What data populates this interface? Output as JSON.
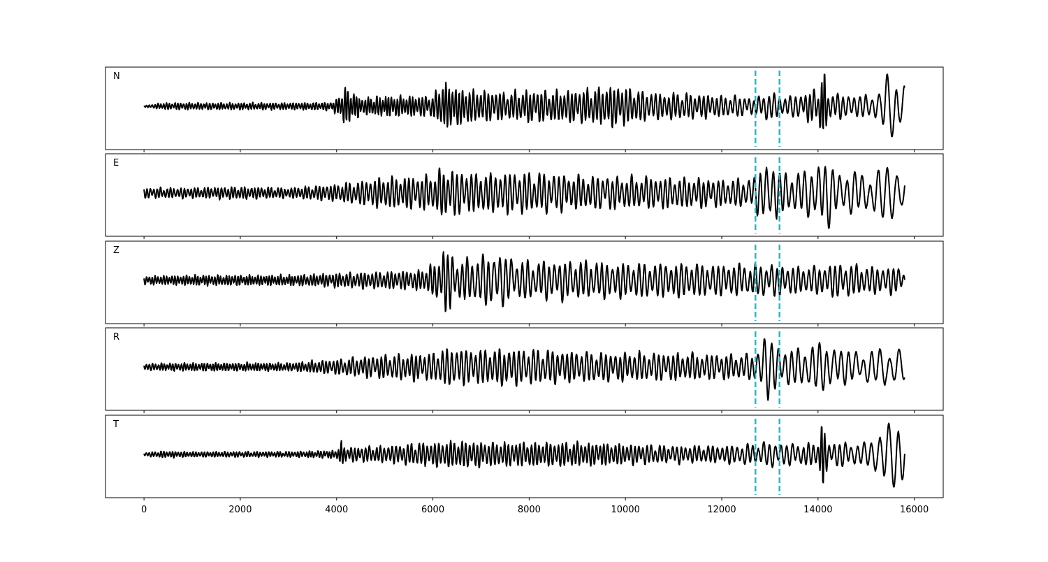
{
  "chart_data": {
    "type": "line",
    "xlim": [
      -800,
      16600
    ],
    "xticks": [
      0,
      2000,
      4000,
      6000,
      8000,
      10000,
      12000,
      14000,
      16000
    ],
    "xtick_labels": [
      "0",
      "2000",
      "4000",
      "6000",
      "8000",
      "10000",
      "12000",
      "14000",
      "16000"
    ],
    "sample_range": [
      0,
      15800
    ],
    "vertical_markers": [
      12700,
      13200
    ],
    "marker_color": "#17becf",
    "trace_color": "#000000",
    "panels": [
      {
        "label": "N",
        "x": [
          0,
          400,
          1000,
          2000,
          3000,
          3900,
          4100,
          4150,
          4500,
          5000,
          6000,
          6200,
          6500,
          7000,
          7600,
          8000,
          9000,
          9800,
          10500,
          11500,
          12000,
          12500,
          12700,
          12900,
          13200,
          13500,
          14000,
          14120,
          14200,
          14500,
          14800,
          15200,
          15300,
          15400,
          15500,
          15600,
          15700,
          15800
        ],
        "amp": [
          0.02,
          0.1,
          0.1,
          0.1,
          0.1,
          0.12,
          0.35,
          0.6,
          0.25,
          0.3,
          0.3,
          0.7,
          0.55,
          0.45,
          0.4,
          0.45,
          0.45,
          0.6,
          0.4,
          0.35,
          0.3,
          0.28,
          0.2,
          0.45,
          0.3,
          0.3,
          0.5,
          1.0,
          0.4,
          0.35,
          0.3,
          0.4,
          0.4,
          0.85,
          0.95,
          0.9,
          0.7,
          0.7
        ],
        "period": [
          60,
          60,
          60,
          60,
          60,
          60,
          60,
          60,
          60,
          60,
          70,
          70,
          70,
          80,
          80,
          80,
          80,
          80,
          90,
          90,
          90,
          100,
          100,
          110,
          110,
          110,
          80,
          60,
          90,
          110,
          120,
          140,
          160,
          180,
          200,
          180,
          160,
          160
        ],
        "seed": 11
      },
      {
        "label": "E",
        "x": [
          0,
          1000,
          2000,
          3000,
          4000,
          5000,
          6000,
          6200,
          7000,
          7600,
          8500,
          9000,
          10000,
          11000,
          12000,
          12500,
          12700,
          12900,
          13050,
          13200,
          13500,
          13700,
          14000,
          14200,
          14500,
          15000,
          15300,
          15500,
          15600,
          15800
        ],
        "amp": [
          0.15,
          0.15,
          0.18,
          0.15,
          0.25,
          0.45,
          0.5,
          0.7,
          0.55,
          0.6,
          0.55,
          0.5,
          0.45,
          0.45,
          0.4,
          0.4,
          0.5,
          0.85,
          0.9,
          0.6,
          0.55,
          0.6,
          0.9,
          0.9,
          0.6,
          0.55,
          0.75,
          0.8,
          0.75,
          0.7
        ],
        "period": [
          70,
          70,
          70,
          70,
          80,
          90,
          90,
          90,
          100,
          100,
          100,
          100,
          100,
          100,
          100,
          110,
          120,
          130,
          140,
          130,
          130,
          140,
          140,
          150,
          150,
          160,
          180,
          200,
          200,
          200
        ],
        "seed": 23
      },
      {
        "label": "Z",
        "x": [
          0,
          1000,
          2000,
          3000,
          4000,
          5000,
          5800,
          6100,
          6250,
          6500,
          7000,
          7400,
          7600,
          8000,
          9000,
          10000,
          11000,
          12000,
          12700,
          13200,
          13500,
          14000,
          14400,
          15000,
          15500,
          15800
        ],
        "amp": [
          0.12,
          0.15,
          0.15,
          0.15,
          0.2,
          0.25,
          0.3,
          0.55,
          1.0,
          0.55,
          0.7,
          0.75,
          0.6,
          0.55,
          0.55,
          0.5,
          0.5,
          0.45,
          0.45,
          0.45,
          0.4,
          0.4,
          0.5,
          0.4,
          0.4,
          0.3
        ],
        "period": [
          60,
          60,
          60,
          60,
          70,
          80,
          80,
          90,
          90,
          100,
          110,
          120,
          120,
          110,
          110,
          110,
          110,
          110,
          110,
          110,
          110,
          110,
          110,
          110,
          110,
          110
        ],
        "seed": 37
      },
      {
        "label": "R",
        "x": [
          0,
          1000,
          2000,
          3000,
          4000,
          5000,
          6000,
          6200,
          7000,
          7500,
          8000,
          9000,
          10000,
          11000,
          12000,
          12500,
          12700,
          12900,
          13000,
          13200,
          13500,
          14000,
          14200,
          14400,
          15000,
          15300,
          15500,
          15650,
          15800
        ],
        "amp": [
          0.1,
          0.12,
          0.12,
          0.12,
          0.22,
          0.35,
          0.4,
          0.55,
          0.5,
          0.55,
          0.5,
          0.45,
          0.4,
          0.4,
          0.35,
          0.35,
          0.4,
          0.95,
          0.95,
          0.6,
          0.5,
          0.7,
          0.7,
          0.55,
          0.4,
          0.55,
          0.6,
          0.5,
          0.45
        ],
        "period": [
          60,
          60,
          60,
          60,
          80,
          90,
          90,
          100,
          100,
          100,
          100,
          100,
          100,
          100,
          100,
          110,
          120,
          140,
          150,
          140,
          140,
          150,
          150,
          150,
          160,
          180,
          200,
          200,
          200
        ],
        "seed": 51
      },
      {
        "label": "T",
        "x": [
          0,
          400,
          1000,
          2000,
          3000,
          4000,
          4100,
          4200,
          5000,
          6000,
          6500,
          7000,
          8000,
          9000,
          10000,
          11000,
          12000,
          12700,
          13000,
          13500,
          14000,
          14100,
          14200,
          14500,
          15000,
          15200,
          15350,
          15500,
          15600,
          15700,
          15800
        ],
        "amp": [
          0.05,
          0.1,
          0.08,
          0.08,
          0.08,
          0.12,
          0.35,
          0.2,
          0.25,
          0.35,
          0.4,
          0.35,
          0.35,
          0.35,
          0.3,
          0.25,
          0.25,
          0.3,
          0.35,
          0.3,
          0.35,
          1.0,
          0.35,
          0.35,
          0.3,
          0.6,
          0.85,
          0.95,
          0.9,
          0.85,
          0.7
        ],
        "period": [
          60,
          60,
          60,
          60,
          60,
          60,
          60,
          70,
          80,
          80,
          80,
          80,
          80,
          80,
          80,
          90,
          100,
          110,
          120,
          120,
          90,
          60,
          100,
          120,
          140,
          170,
          190,
          210,
          200,
          180,
          180
        ],
        "seed": 73
      }
    ]
  }
}
